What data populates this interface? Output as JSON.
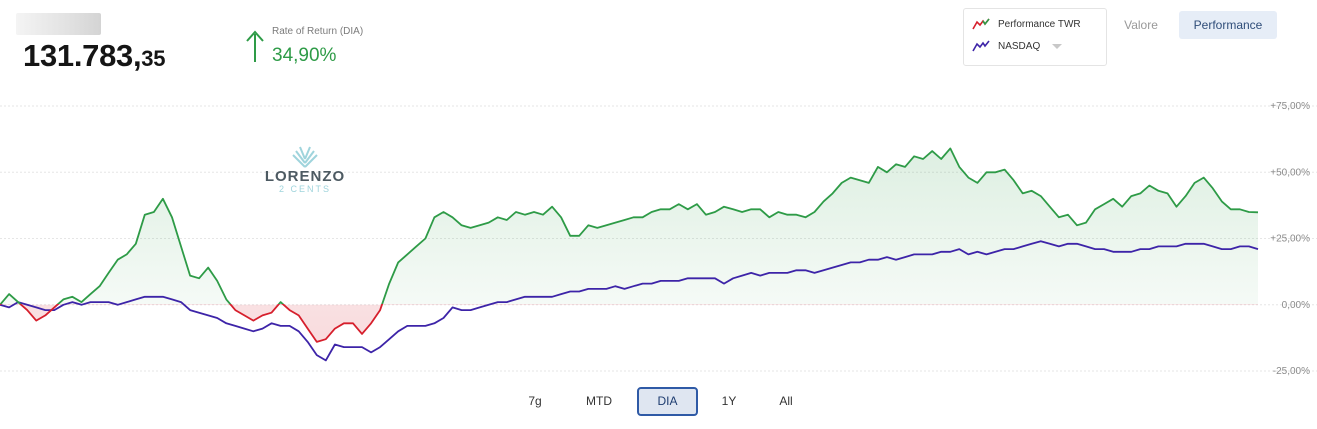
{
  "header": {
    "value_integer": "131.783,",
    "value_decimal": "35"
  },
  "return_box": {
    "label": "Rate of Return (DIA)",
    "value": "34,90%"
  },
  "legend": {
    "items": [
      {
        "label": "Performance TWR",
        "color": "#d61f2c",
        "color2": "#2e9b47"
      },
      {
        "label": "NASDAQ",
        "color": "#3d24a8"
      }
    ]
  },
  "view_toggle": {
    "valore": "Valore",
    "performance": "Performance"
  },
  "watermark": {
    "title": "LORENZO",
    "subtitle": "2 CENTS"
  },
  "range_selector": {
    "buttons": [
      "7g",
      "MTD",
      "DIA",
      "1Y",
      "All"
    ],
    "active": "DIA"
  },
  "colors": {
    "positive": "#2e9b47",
    "negative": "#d61f2c",
    "benchmark": "#3d24a8",
    "active_range": "#2f5aa6"
  },
  "chart_data": {
    "type": "line",
    "y_axis": {
      "ticks": [
        "+75,00%",
        "+50,00%",
        "+25,00%",
        "0,00%",
        "-25,00%"
      ],
      "tick_values": [
        75,
        50,
        25,
        0,
        -25
      ],
      "ylim": [
        -25,
        75
      ],
      "position": "right",
      "grid": true
    },
    "series": [
      {
        "name": "Performance TWR",
        "values": [
          0,
          4,
          1,
          -2,
          -6,
          -4,
          -1,
          2,
          3,
          1,
          4,
          7,
          12,
          17,
          19,
          23,
          34,
          35,
          40,
          33,
          22,
          11,
          10,
          14,
          9,
          2,
          -2,
          -4,
          -6,
          -4,
          -3,
          1,
          -2,
          -4,
          -9,
          -14,
          -13,
          -9,
          -7,
          -7,
          -11,
          -7,
          -2,
          8,
          16,
          19,
          22,
          25,
          33,
          35,
          33,
          30,
          29,
          30,
          31,
          33,
          32,
          35,
          34,
          35,
          34,
          37,
          33,
          26,
          26,
          30,
          29,
          30,
          31,
          32,
          33,
          33,
          35,
          36,
          36,
          38,
          36,
          38,
          34,
          35,
          37,
          36,
          35,
          36,
          36,
          33,
          35,
          34,
          34,
          33,
          35,
          39,
          42,
          46,
          48,
          47,
          46,
          52,
          50,
          53,
          52,
          56,
          55,
          58,
          55,
          59,
          52,
          48,
          46,
          50,
          50,
          51,
          47,
          42,
          43,
          41,
          37,
          33,
          34,
          30,
          31,
          36,
          38,
          40,
          37,
          41,
          42,
          45,
          43,
          42,
          37,
          41,
          46,
          48,
          44,
          39,
          36,
          36,
          35,
          34.9
        ]
      },
      {
        "name": "NASDAQ",
        "values": [
          0,
          -1,
          1,
          0,
          -1,
          -2,
          -2,
          0,
          1,
          0,
          1,
          1,
          1,
          0,
          1,
          2,
          3,
          3,
          3,
          2,
          1,
          -2,
          -3,
          -4,
          -5,
          -7,
          -8,
          -9,
          -10,
          -9,
          -7,
          -8,
          -8,
          -10,
          -14,
          -19,
          -21,
          -15,
          -16,
          -16,
          -16,
          -18,
          -16,
          -13,
          -10,
          -8,
          -8,
          -8,
          -7,
          -5,
          -1,
          -2,
          -2,
          -1,
          0,
          1,
          1,
          2,
          3,
          3,
          3,
          3,
          4,
          5,
          5,
          6,
          6,
          6,
          7,
          6,
          7,
          8,
          8,
          9,
          9,
          9,
          10,
          10,
          10,
          10,
          8,
          10,
          11,
          12,
          11,
          12,
          12,
          12,
          13,
          13,
          12,
          13,
          14,
          15,
          16,
          16,
          17,
          17,
          18,
          17,
          18,
          19,
          19,
          19,
          20,
          20,
          21,
          19,
          20,
          19,
          20,
          21,
          21,
          22,
          23,
          24,
          23,
          22,
          23,
          23,
          22,
          21,
          21,
          20,
          20,
          20,
          21,
          21,
          22,
          22,
          22,
          23,
          23,
          23,
          22,
          21,
          21,
          22,
          22,
          21
        ]
      }
    ]
  }
}
